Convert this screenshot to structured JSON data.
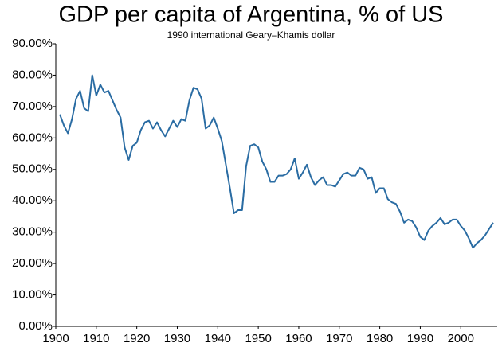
{
  "chart_data": {
    "type": "line",
    "title": "GDP per capita of Argentina, % of US",
    "subtitle": "1990 international Geary–Khamis dollar",
    "x": [
      1901,
      1902,
      1903,
      1904,
      1905,
      1906,
      1907,
      1908,
      1909,
      1910,
      1911,
      1912,
      1913,
      1914,
      1915,
      1916,
      1917,
      1918,
      1919,
      1920,
      1921,
      1922,
      1923,
      1924,
      1925,
      1926,
      1927,
      1928,
      1929,
      1930,
      1931,
      1932,
      1933,
      1934,
      1935,
      1936,
      1937,
      1938,
      1939,
      1940,
      1941,
      1942,
      1943,
      1944,
      1945,
      1946,
      1947,
      1948,
      1949,
      1950,
      1951,
      1952,
      1953,
      1954,
      1955,
      1956,
      1957,
      1958,
      1959,
      1960,
      1961,
      1962,
      1963,
      1964,
      1965,
      1966,
      1967,
      1968,
      1969,
      1970,
      1971,
      1972,
      1973,
      1974,
      1975,
      1976,
      1977,
      1978,
      1979,
      1980,
      1981,
      1982,
      1983,
      1984,
      1985,
      1986,
      1987,
      1988,
      1989,
      1990,
      1991,
      1992,
      1993,
      1994,
      1995,
      1996,
      1997,
      1998,
      1999,
      2000,
      2001,
      2002,
      2003,
      2004,
      2005,
      2006,
      2007,
      2008
    ],
    "series": [
      {
        "color": "#2a6ca3",
        "values": [
          67.5,
          64,
          61.5,
          66,
          72.5,
          75,
          69.5,
          68.5,
          80,
          73.5,
          77,
          74.5,
          75,
          72,
          69,
          66.5,
          57,
          53,
          57.5,
          58.5,
          62.5,
          65,
          65.5,
          63,
          65,
          62.5,
          60.5,
          63,
          65.5,
          63.5,
          66,
          65.5,
          72,
          76,
          75.5,
          72.5,
          63,
          64,
          66.5,
          63,
          59,
          51.5,
          44,
          36,
          37,
          37,
          51,
          57.5,
          58,
          57,
          52.5,
          50,
          46,
          46,
          48,
          48,
          48.5,
          50,
          53.5,
          47,
          49,
          51.5,
          47.5,
          45,
          46.5,
          47.5,
          45,
          45,
          44.5,
          46.5,
          48.5,
          49,
          48,
          48,
          50.5,
          50,
          47,
          47.5,
          42.5,
          44,
          44,
          40.5,
          39.5,
          39,
          36.5,
          33,
          34,
          33.5,
          31.5,
          28.5,
          27.5,
          30.5,
          32,
          33,
          34.5,
          32.5,
          33,
          34,
          34,
          32,
          30.5,
          28,
          25,
          26.5,
          27.5,
          29,
          31,
          33
        ]
      }
    ],
    "xlim": [
      1900,
      2009
    ],
    "xticks": [
      1900,
      1910,
      1920,
      1930,
      1940,
      1950,
      1960,
      1970,
      1980,
      1990,
      2000
    ],
    "ylim": [
      0,
      90
    ],
    "yticks": [
      {
        "value": 0,
        "label": "0.00%"
      },
      {
        "value": 10,
        "label": "10.00%"
      },
      {
        "value": 20,
        "label": "20.00%"
      },
      {
        "value": 30,
        "label": "30.00%"
      },
      {
        "value": 40,
        "label": "40.00%"
      },
      {
        "value": 50,
        "label": "50.00%"
      },
      {
        "value": 60,
        "label": "60.00%"
      },
      {
        "value": 70,
        "label": "70.00%"
      },
      {
        "value": 80,
        "label": "80.00%"
      },
      {
        "value": 90,
        "label": "90.00%"
      }
    ],
    "grid": false
  }
}
